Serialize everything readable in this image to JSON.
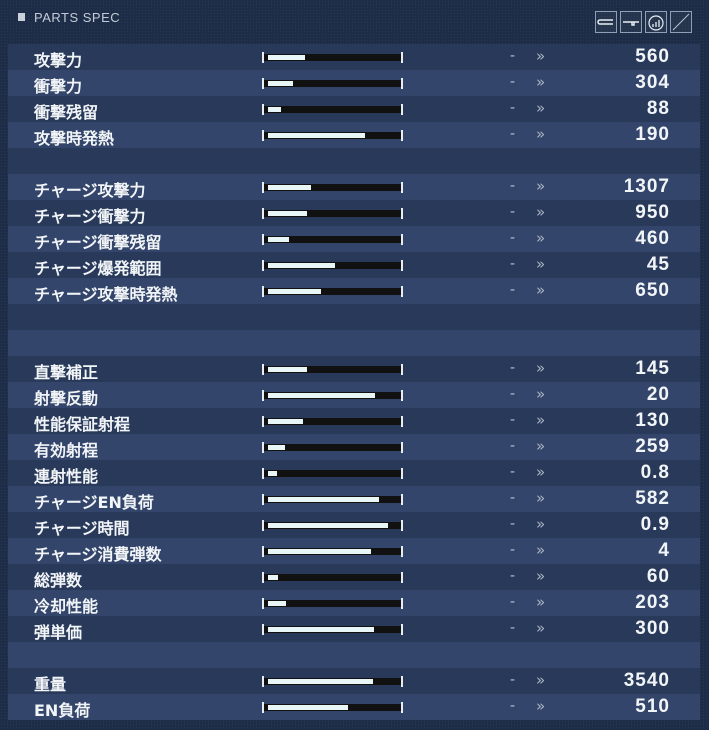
{
  "header": {
    "title": "PARTS SPEC",
    "icons": [
      "weapon-blade-icon",
      "weapon-rifle-icon",
      "charge-icon",
      "empty-slot-icon"
    ]
  },
  "colors": {
    "fill": "#e9f6f8",
    "track": "#111111",
    "row_dark": "#28395a",
    "row_light": "#33456a"
  },
  "rows": [
    {
      "label": "攻撃力",
      "prev": "-",
      "value": "560",
      "level": 0.29
    },
    {
      "label": "衝撃力",
      "prev": "-",
      "value": "304",
      "level": 0.19
    },
    {
      "label": "衝撃残留",
      "prev": "-",
      "value": "88",
      "level": 0.1
    },
    {
      "label": "攻撃時発熱",
      "prev": "-",
      "value": "190",
      "level": 0.75
    },
    null,
    {
      "label": "チャージ攻撃力",
      "prev": "-",
      "value": "1307",
      "level": 0.33
    },
    {
      "label": "チャージ衝撃力",
      "prev": "-",
      "value": "950",
      "level": 0.3
    },
    {
      "label": "チャージ衝撃残留",
      "prev": "-",
      "value": "460",
      "level": 0.16
    },
    {
      "label": "チャージ爆発範囲",
      "prev": "-",
      "value": "45",
      "level": 0.52
    },
    {
      "label": "チャージ攻撃時発熱",
      "prev": "-",
      "value": "650",
      "level": 0.41
    },
    null,
    null,
    {
      "label": "直撃補正",
      "prev": "-",
      "value": "145",
      "level": 0.3
    },
    {
      "label": "射撃反動",
      "prev": "-",
      "value": "20",
      "level": 0.83
    },
    {
      "label": "性能保証射程",
      "prev": "-",
      "value": "130",
      "level": 0.27
    },
    {
      "label": "有効射程",
      "prev": "-",
      "value": "259",
      "level": 0.13
    },
    {
      "label": "連射性能",
      "prev": "-",
      "value": "0.8",
      "level": 0.07
    },
    {
      "label": "チャージEN負荷",
      "prev": "-",
      "value": "582",
      "level": 0.86
    },
    {
      "label": "チャージ時間",
      "prev": "-",
      "value": "0.9",
      "level": 0.93
    },
    {
      "label": "チャージ消費弾数",
      "prev": "-",
      "value": "4",
      "level": 0.8
    },
    {
      "label": "総弾数",
      "prev": "-",
      "value": "60",
      "level": 0.08
    },
    {
      "label": "冷却性能",
      "prev": "-",
      "value": "203",
      "level": 0.14
    },
    {
      "label": "弾単価",
      "prev": "-",
      "value": "300",
      "level": 0.82
    },
    null,
    {
      "label": "重量",
      "prev": "-",
      "value": "3540",
      "level": 0.81
    },
    {
      "label": "EN負荷",
      "prev": "-",
      "value": "510",
      "level": 0.62
    }
  ]
}
